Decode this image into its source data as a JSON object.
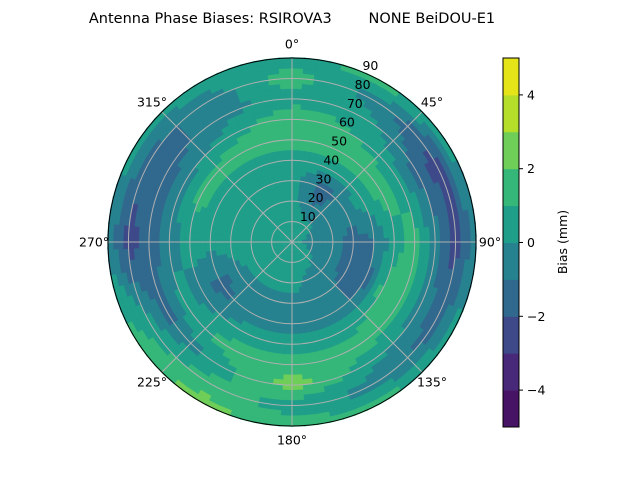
{
  "chart_data": {
    "type": "heatmap",
    "subtype": "polar-filled-contour",
    "title": "Antenna Phase Biases: RSIROVA3        NONE BeiDOU-E1",
    "theta_direction": "clockwise",
    "theta_zero": "top",
    "theta_tick_labels": [
      "0°",
      "45°",
      "90°",
      "135°",
      "180°",
      "225°",
      "270°",
      "315°"
    ],
    "theta_ticks": [
      0,
      45,
      90,
      135,
      180,
      225,
      270,
      315
    ],
    "r_ticks": [
      10,
      20,
      30,
      40,
      50,
      60,
      70,
      80,
      90
    ],
    "r_tick_labels": [
      "10",
      "20",
      "30",
      "40",
      "50",
      "60",
      "70",
      "80",
      "90"
    ],
    "rlim": [
      0,
      90
    ],
    "grid": true,
    "colorbar": {
      "label": "Bias (mm)",
      "levels": [
        -5,
        -4,
        -3,
        -2,
        -1,
        0,
        1,
        2,
        3,
        4,
        5
      ],
      "ticks": [
        4,
        2,
        0,
        -2,
        -4
      ],
      "tick_labels": [
        "4",
        "2",
        "0",
        "−2",
        "−4"
      ],
      "colors": [
        "#471365",
        "#482878",
        "#3e4989",
        "#31688e",
        "#26828e",
        "#1f9e89",
        "#35b779",
        "#6ece58",
        "#b5de2b",
        "#e5e419"
      ],
      "colormap": "viridis"
    },
    "azimuth": [
      0,
      30,
      60,
      90,
      120,
      150,
      180,
      210,
      240,
      270,
      300,
      330
    ],
    "zenith": [
      0,
      10,
      20,
      30,
      40,
      50,
      60,
      70,
      80,
      90
    ],
    "values": [
      [
        0.5,
        0.5,
        0.5,
        0.5,
        0.5,
        1.5,
        2,
        0.5,
        1.5,
        0.5
      ],
      [
        0.5,
        0.5,
        -1,
        -1.5,
        0.5,
        1.5,
        1,
        0.5,
        -0.5,
        1.5
      ],
      [
        0.5,
        0,
        -0.5,
        -0.5,
        0.5,
        1.5,
        0.5,
        -1.5,
        -2.5,
        0.5
      ],
      [
        0.5,
        -0.5,
        -0.5,
        -1.5,
        -1,
        0.5,
        1.5,
        -0.5,
        -2.5,
        -0.5
      ],
      [
        0.5,
        0,
        -0.5,
        -1.5,
        -1.5,
        1.5,
        1.5,
        -0.5,
        -1.5,
        0.5
      ],
      [
        0.5,
        0.5,
        -0.5,
        -0.5,
        -0.5,
        0.5,
        1.5,
        0.5,
        -0.5,
        1.5
      ],
      [
        0.5,
        0.5,
        0.5,
        -0.5,
        -0.5,
        0.5,
        1.5,
        2.5,
        0.5,
        1.5
      ],
      [
        0.5,
        0.5,
        0.5,
        -0.5,
        -0.5,
        0.5,
        1.5,
        0.5,
        1.5,
        2.5
      ],
      [
        0.5,
        0.5,
        0.5,
        -0.5,
        -1.5,
        -0.5,
        0.5,
        -1.5,
        0.5,
        1.5
      ],
      [
        0.5,
        0.5,
        0.5,
        0.5,
        0.5,
        0.5,
        -0.5,
        -1.5,
        -2.5,
        -0.5
      ],
      [
        0.5,
        0.5,
        0.5,
        0.5,
        0.5,
        1.5,
        -0.5,
        -1.5,
        -1.5,
        0.5
      ],
      [
        0.5,
        0.5,
        0.5,
        0.5,
        0.5,
        1.5,
        0.5,
        -0.5,
        -0.5,
        0.5
      ]
    ]
  }
}
